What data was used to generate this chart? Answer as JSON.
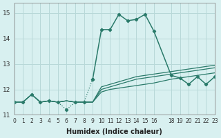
{
  "bg_color": "#d8f0f0",
  "grid_color": "#b8d8d8",
  "line_color": "#2a7a6a",
  "xlabel": "Humidex (Indice chaleur)",
  "xlim": [
    0,
    23
  ],
  "ylim": [
    11,
    15.4
  ],
  "yticks": [
    11,
    12,
    13,
    14,
    15
  ],
  "xticks": [
    0,
    1,
    2,
    3,
    4,
    5,
    6,
    7,
    8,
    9,
    10,
    11,
    12,
    13,
    14,
    15,
    16,
    18,
    19,
    20,
    21,
    22,
    23
  ],
  "main_x": [
    0,
    1,
    2,
    3,
    4,
    5,
    6,
    7,
    8,
    9,
    10,
    11,
    12,
    13,
    14,
    15,
    16,
    18,
    19,
    20,
    21,
    22,
    23
  ],
  "main_y": [
    11.5,
    11.5,
    11.8,
    11.5,
    11.55,
    11.5,
    11.2,
    11.5,
    11.5,
    12.4,
    14.35,
    14.35,
    14.95,
    14.7,
    14.75,
    14.95,
    14.3,
    12.55,
    12.45,
    12.2,
    12.5,
    12.2,
    12.5
  ],
  "flat_lines": [
    [
      11.5,
      11.5,
      11.8,
      11.5,
      11.55,
      11.5,
      11.55,
      11.5,
      11.5,
      11.5,
      11.9,
      12.0,
      12.05,
      12.1,
      12.15,
      12.2,
      12.25,
      12.4,
      12.45,
      12.5,
      12.55,
      12.6,
      12.65
    ],
    [
      11.5,
      11.5,
      11.8,
      11.5,
      11.55,
      11.5,
      11.55,
      11.5,
      11.5,
      11.5,
      12.0,
      12.1,
      12.2,
      12.3,
      12.4,
      12.45,
      12.5,
      12.6,
      12.65,
      12.7,
      12.75,
      12.8,
      12.85
    ],
    [
      11.5,
      11.5,
      11.8,
      11.5,
      11.55,
      11.5,
      11.55,
      11.5,
      11.5,
      11.5,
      12.1,
      12.2,
      12.3,
      12.4,
      12.5,
      12.55,
      12.6,
      12.7,
      12.75,
      12.8,
      12.85,
      12.9,
      12.95
    ]
  ]
}
